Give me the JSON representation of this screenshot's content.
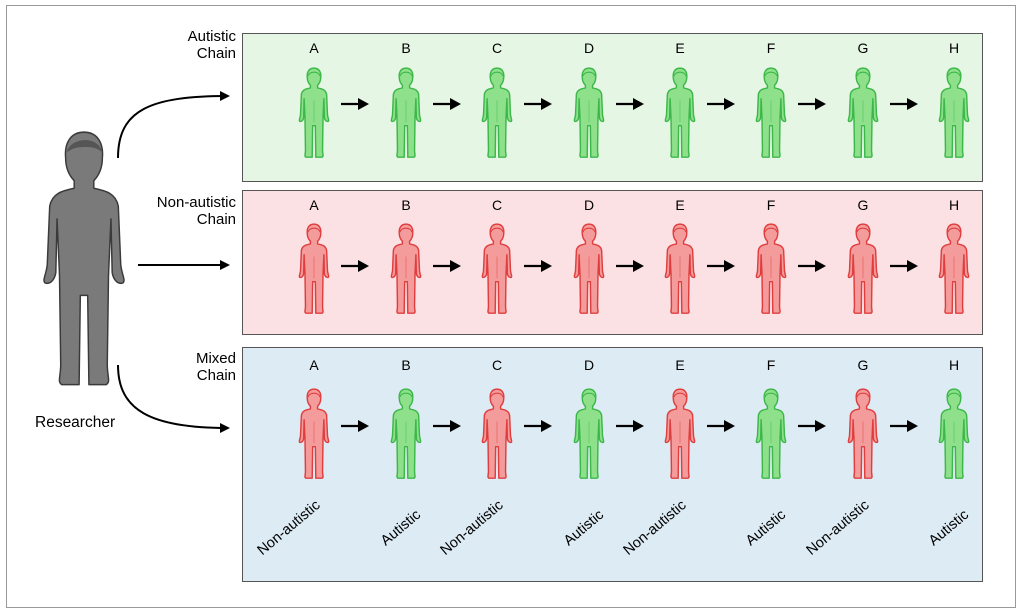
{
  "researcher": {
    "label": "Researcher"
  },
  "colors": {
    "autistic_fill": "#8ee08a",
    "autistic_stroke": "#3cb84a",
    "nonautistic_fill": "#f49b9b",
    "nonautistic_stroke": "#e03e3e",
    "researcher_fill": "#7a7a7a",
    "researcher_stroke": "#3a3a3a",
    "panel_autistic_bg": "#e6f6e4",
    "panel_nonautistic_bg": "#fbe1e3",
    "panel_mixed_bg": "#ddebf4"
  },
  "chains": [
    {
      "label_line1": "Autistic",
      "label_line2": "Chain",
      "participants": [
        {
          "letter": "A",
          "type": "autistic"
        },
        {
          "letter": "B",
          "type": "autistic"
        },
        {
          "letter": "C",
          "type": "autistic"
        },
        {
          "letter": "D",
          "type": "autistic"
        },
        {
          "letter": "E",
          "type": "autistic"
        },
        {
          "letter": "F",
          "type": "autistic"
        },
        {
          "letter": "G",
          "type": "autistic"
        },
        {
          "letter": "H",
          "type": "autistic"
        }
      ]
    },
    {
      "label_line1": "Non-autistic",
      "label_line2": "Chain",
      "participants": [
        {
          "letter": "A",
          "type": "nonautistic"
        },
        {
          "letter": "B",
          "type": "nonautistic"
        },
        {
          "letter": "C",
          "type": "nonautistic"
        },
        {
          "letter": "D",
          "type": "nonautistic"
        },
        {
          "letter": "E",
          "type": "nonautistic"
        },
        {
          "letter": "F",
          "type": "nonautistic"
        },
        {
          "letter": "G",
          "type": "nonautistic"
        },
        {
          "letter": "H",
          "type": "nonautistic"
        }
      ]
    },
    {
      "label_line1": "Mixed",
      "label_line2": "Chain",
      "participants": [
        {
          "letter": "A",
          "type": "nonautistic",
          "role": "Non-autistic"
        },
        {
          "letter": "B",
          "type": "autistic",
          "role": "Autistic"
        },
        {
          "letter": "C",
          "type": "nonautistic",
          "role": "Non-autistic"
        },
        {
          "letter": "D",
          "type": "autistic",
          "role": "Autistic"
        },
        {
          "letter": "E",
          "type": "nonautistic",
          "role": "Non-autistic"
        },
        {
          "letter": "F",
          "type": "autistic",
          "role": "Autistic"
        },
        {
          "letter": "G",
          "type": "nonautistic",
          "role": "Non-autistic"
        },
        {
          "letter": "H",
          "type": "autistic",
          "role": "Autistic"
        }
      ]
    }
  ]
}
